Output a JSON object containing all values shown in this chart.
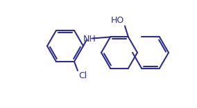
{
  "line_color": "#2d2d8f",
  "bg_color": "#ffffff",
  "line_width": 1.5,
  "font_size_label": 8,
  "ho_label": "HO",
  "nh_label": "NH",
  "cl_label": "Cl"
}
